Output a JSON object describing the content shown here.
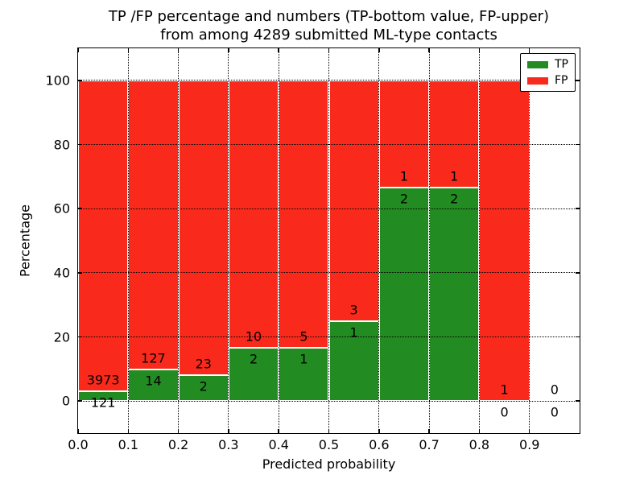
{
  "title": {
    "line1": "TP /FP percentage and numbers (TP-bottom value, FP-upper)",
    "line2": "from among 4289 submitted ML-type contacts"
  },
  "axes": {
    "xlabel": "Predicted probability",
    "ylabel": "Percentage",
    "x_tick_labels": [
      "0.0",
      "0.1",
      "0.2",
      "0.3",
      "0.4",
      "0.5",
      "0.6",
      "0.7",
      "0.8",
      "0.9"
    ],
    "y_tick_labels": [
      "0",
      "20",
      "40",
      "60",
      "80",
      "100"
    ]
  },
  "legend": [
    {
      "label": "TP",
      "color": "#228b22",
      "swatch": "green-swatch"
    },
    {
      "label": "FP",
      "color": "#f92a1c",
      "swatch": "red-swatch"
    }
  ],
  "colors": {
    "tp_green": "#228b22",
    "fp_red": "#f92a1c",
    "bar_edge": "#ffffff",
    "grid": "#000000",
    "background": "#ffffff",
    "text": "#000000"
  },
  "chart_data": {
    "type": "bar",
    "subtype": "stacked-percentage-histogram",
    "title": "TP /FP percentage and numbers (TP-bottom value, FP-upper) from among 4289 submitted ML-type contacts",
    "xlabel": "Predicted probability",
    "ylabel": "Percentage",
    "xlim": [
      0.0,
      1.0
    ],
    "ylim": [
      -10,
      110
    ],
    "x_ticks": [
      0.0,
      0.1,
      0.2,
      0.3,
      0.4,
      0.5,
      0.6,
      0.7,
      0.8,
      0.9
    ],
    "y_ticks": [
      0,
      20,
      40,
      60,
      80,
      100
    ],
    "bin_width": 0.1,
    "categories": [
      "0.0-0.1",
      "0.1-0.2",
      "0.2-0.3",
      "0.3-0.4",
      "0.4-0.5",
      "0.5-0.6",
      "0.6-0.7",
      "0.7-0.8",
      "0.8-0.9",
      "0.9-1.0"
    ],
    "series": [
      {
        "name": "TP",
        "color": "#228b22",
        "counts": [
          121,
          14,
          2,
          2,
          1,
          1,
          2,
          2,
          0,
          0
        ]
      },
      {
        "name": "FP",
        "color": "#f92a1c",
        "counts": [
          3973,
          127,
          23,
          10,
          5,
          3,
          1,
          1,
          1,
          0
        ]
      }
    ],
    "tp_percent": [
      2.96,
      9.93,
      8.0,
      16.67,
      16.67,
      25.0,
      66.67,
      66.67,
      0.0,
      null
    ],
    "total_contacts": 4289,
    "grid": "dotted",
    "legend_position": "upper right",
    "annotation_rule": "FP count printed just above the TP/FP boundary, TP count just below it, centered on each bin"
  }
}
